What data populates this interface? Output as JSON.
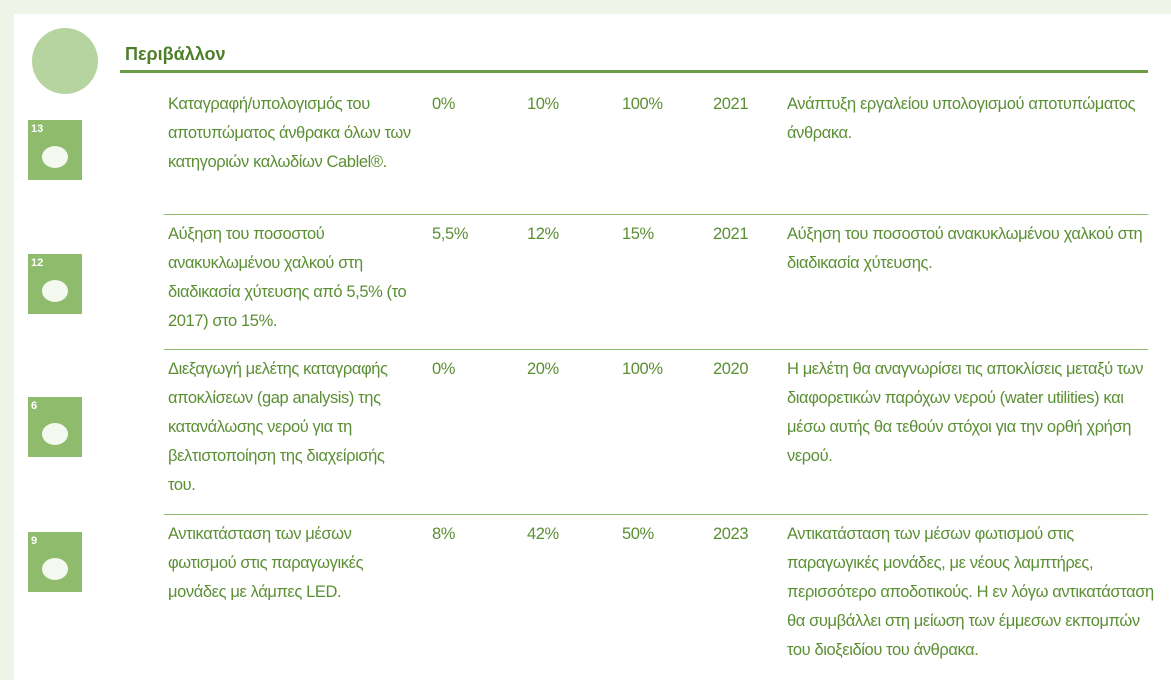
{
  "header": {
    "title": "Περιβάλλον"
  },
  "icons": [
    "13",
    "12",
    "6",
    "9"
  ],
  "table": {
    "rows": [
      [
        "Καταγραφή/υπολογισμός του αποτυπώματος άνθρακα όλων των κατηγοριών καλωδίων Cablel®.",
        "0%",
        "10%",
        "100%",
        "2021",
        "Ανάπτυξη εργαλείου υπολογισμού αποτυπώματος άνθρακα."
      ],
      [
        "Αύξηση του ποσοστού ανακυκλωμένου χαλκού στη διαδικασία χύτευσης από 5,5% (το 2017) στο 15%.",
        "5,5%",
        "12%",
        "15%",
        "2021",
        "Αύξηση του ποσοστού ανακυκλωμένου χαλκού στη διαδικασία χύτευσης."
      ],
      [
        "Διεξαγωγή μελέτης καταγραφής αποκλίσεων (gap analysis) της κατανάλωσης νερού για τη βελτιστοποίηση της διαχείρισής του.",
        "0%",
        "20%",
        "100%",
        "2020",
        "Η μελέτη θα αναγνωρίσει τις αποκλίσεις μεταξύ των διαφορετικών παρόχων νερού (water utilities) και μέσω αυτής θα τεθούν στόχοι για την ορθή χρήση νερού."
      ],
      [
        "Αντικατάσταση των μέσων φωτισμού στις παραγωγικές μονάδες με λάμπες LED.",
        "8%",
        "42%",
        "50%",
        "2023",
        "Αντικατάσταση των μέσων φωτισμού στις παραγωγικές μονάδες, με νέους λαμπτήρες, περισσότερο αποδοτικούς. Η εν λόγω αντικατάσταση θα συμβάλλει στη μείωση των έμμεσων εκπομπών του διοξειδίου του άνθρακα."
      ]
    ]
  }
}
